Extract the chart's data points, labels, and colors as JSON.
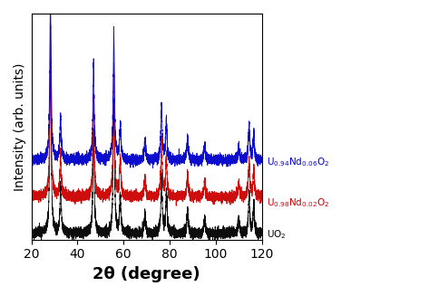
{
  "title": "",
  "xlabel": "2θ (degree)",
  "ylabel": "Intensity (arb. units)",
  "xlim": [
    20,
    120
  ],
  "background_color": "#ffffff",
  "line_colors": [
    "#000000",
    "#cc0000",
    "#0000cc"
  ],
  "labels": [
    "UO$_2$",
    "U$_{0.98}$Nd$_{0.02}$O$_2$",
    "U$_{0.94}$Nd$_{0.06}$O$_2$"
  ],
  "label_colors": [
    "#000000",
    "#cc0000",
    "#0000cc"
  ],
  "offsets": [
    0.0,
    0.18,
    0.36
  ],
  "peak_positions": [
    28.3,
    32.7,
    47.0,
    55.8,
    58.6,
    69.3,
    76.5,
    78.6,
    87.8,
    95.2,
    110.0,
    114.5,
    116.5
  ],
  "peak_heights": [
    0.85,
    0.22,
    0.5,
    0.65,
    0.18,
    0.1,
    0.28,
    0.2,
    0.12,
    0.08,
    0.08,
    0.18,
    0.14
  ],
  "noise_amplitude": 0.012,
  "xlabel_fontsize": 13,
  "ylabel_fontsize": 10,
  "tick_fontsize": 10,
  "label_fontsize": 7.5
}
